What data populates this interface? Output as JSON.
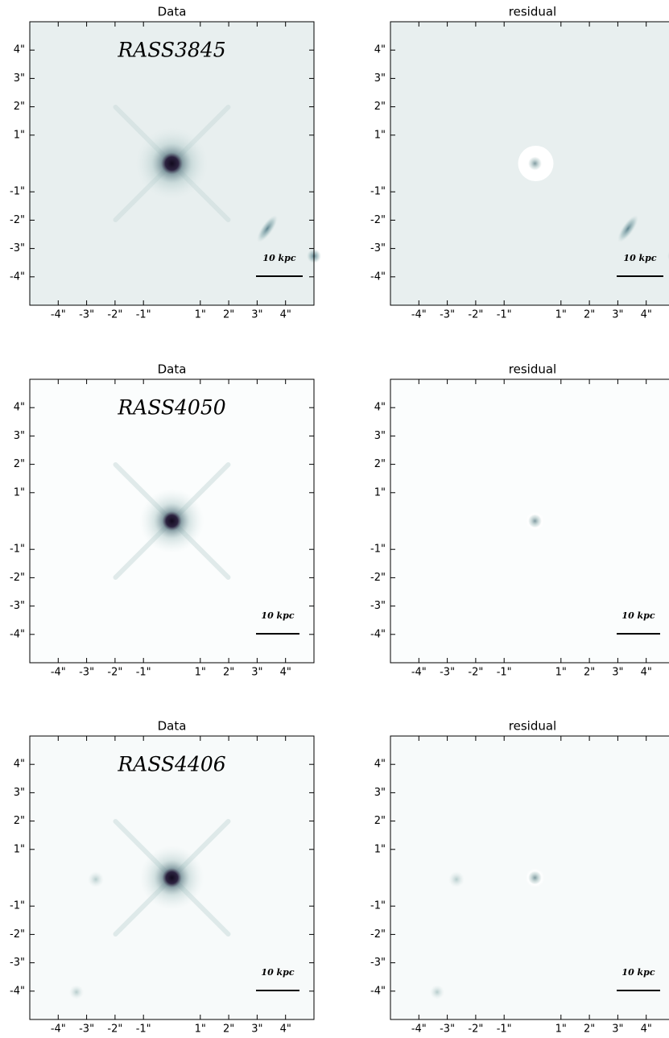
{
  "chart_data": [
    {
      "type": "image",
      "title": "Data",
      "annotation": "RASS3845",
      "scale_label": "10 kpc",
      "xlim": [
        -5,
        5
      ],
      "ylim": [
        -5,
        5
      ],
      "xticks": [
        {
          "value": -4,
          "label": "-4\""
        },
        {
          "value": -3,
          "label": "-3\""
        },
        {
          "value": -2,
          "label": "-2\""
        },
        {
          "value": -1,
          "label": "-1\""
        },
        {
          "value": 1,
          "label": "1\""
        },
        {
          "value": 2,
          "label": "2\""
        },
        {
          "value": 3,
          "label": "3\""
        },
        {
          "value": 4,
          "label": "4\""
        }
      ],
      "yticks": [
        {
          "value": -4,
          "label": "-4\""
        },
        {
          "value": -3,
          "label": "-3\""
        },
        {
          "value": -2,
          "label": "-2\""
        },
        {
          "value": -1,
          "label": "-1\""
        },
        {
          "value": 1,
          "label": "1\""
        },
        {
          "value": 2,
          "label": "2\""
        },
        {
          "value": 3,
          "label": "3\""
        },
        {
          "value": 4,
          "label": "4\""
        }
      ]
    },
    {
      "type": "image",
      "title": "residual",
      "scale_label": "10 kpc",
      "xlim": [
        -5,
        5
      ],
      "ylim": [
        -5,
        5
      ],
      "xticks": [
        {
          "value": -4,
          "label": "-4\""
        },
        {
          "value": -3,
          "label": "-3\""
        },
        {
          "value": -2,
          "label": "-2\""
        },
        {
          "value": -1,
          "label": "-1\""
        },
        {
          "value": 1,
          "label": "1\""
        },
        {
          "value": 2,
          "label": "2\""
        },
        {
          "value": 3,
          "label": "3\""
        },
        {
          "value": 4,
          "label": "4\""
        }
      ],
      "yticks": [
        {
          "value": -4,
          "label": "-4\""
        },
        {
          "value": -3,
          "label": "-3\""
        },
        {
          "value": -2,
          "label": "-2\""
        },
        {
          "value": -1,
          "label": "-1\""
        },
        {
          "value": 1,
          "label": "1\""
        },
        {
          "value": 2,
          "label": "2\""
        },
        {
          "value": 3,
          "label": "3\""
        },
        {
          "value": 4,
          "label": "4\""
        }
      ]
    },
    {
      "type": "image",
      "title": "Data",
      "annotation": "RASS4050",
      "scale_label": "10 kpc",
      "xlim": [
        -5,
        5
      ],
      "ylim": [
        -5,
        5
      ],
      "xticks": [
        {
          "value": -4,
          "label": "-4\""
        },
        {
          "value": -3,
          "label": "-3\""
        },
        {
          "value": -2,
          "label": "-2\""
        },
        {
          "value": -1,
          "label": "-1\""
        },
        {
          "value": 1,
          "label": "1\""
        },
        {
          "value": 2,
          "label": "2\""
        },
        {
          "value": 3,
          "label": "3\""
        },
        {
          "value": 4,
          "label": "4\""
        }
      ],
      "yticks": [
        {
          "value": -4,
          "label": "-4\""
        },
        {
          "value": -3,
          "label": "-3\""
        },
        {
          "value": -2,
          "label": "-2\""
        },
        {
          "value": -1,
          "label": "-1\""
        },
        {
          "value": 1,
          "label": "1\""
        },
        {
          "value": 2,
          "label": "2\""
        },
        {
          "value": 3,
          "label": "3\""
        },
        {
          "value": 4,
          "label": "4\""
        }
      ]
    },
    {
      "type": "image",
      "title": "residual",
      "scale_label": "10 kpc",
      "xlim": [
        -5,
        5
      ],
      "ylim": [
        -5,
        5
      ],
      "xticks": [
        {
          "value": -4,
          "label": "-4\""
        },
        {
          "value": -3,
          "label": "-3\""
        },
        {
          "value": -2,
          "label": "-2\""
        },
        {
          "value": -1,
          "label": "-1\""
        },
        {
          "value": 1,
          "label": "1\""
        },
        {
          "value": 2,
          "label": "2\""
        },
        {
          "value": 3,
          "label": "3\""
        },
        {
          "value": 4,
          "label": "4\""
        }
      ],
      "yticks": [
        {
          "value": -4,
          "label": "-4\""
        },
        {
          "value": -3,
          "label": "-3\""
        },
        {
          "value": -2,
          "label": "-2\""
        },
        {
          "value": -1,
          "label": "-1\""
        },
        {
          "value": 1,
          "label": "1\""
        },
        {
          "value": 2,
          "label": "2\""
        },
        {
          "value": 3,
          "label": "3\""
        },
        {
          "value": 4,
          "label": "4\""
        }
      ]
    },
    {
      "type": "image",
      "title": "Data",
      "annotation": "RASS4406",
      "scale_label": "10 kpc",
      "xlim": [
        -5,
        5
      ],
      "ylim": [
        -5,
        5
      ],
      "xticks": [
        {
          "value": -4,
          "label": "-4\""
        },
        {
          "value": -3,
          "label": "-3\""
        },
        {
          "value": -2,
          "label": "-2\""
        },
        {
          "value": -1,
          "label": "-1\""
        },
        {
          "value": 1,
          "label": "1\""
        },
        {
          "value": 2,
          "label": "2\""
        },
        {
          "value": 3,
          "label": "3\""
        },
        {
          "value": 4,
          "label": "4\""
        }
      ],
      "yticks": [
        {
          "value": -4,
          "label": "-4\""
        },
        {
          "value": -3,
          "label": "-3\""
        },
        {
          "value": -2,
          "label": "-2\""
        },
        {
          "value": -1,
          "label": "-1\""
        },
        {
          "value": 1,
          "label": "1\""
        },
        {
          "value": 2,
          "label": "2\""
        },
        {
          "value": 3,
          "label": "3\""
        },
        {
          "value": 4,
          "label": "4\""
        }
      ]
    },
    {
      "type": "image",
      "title": "residual",
      "scale_label": "10 kpc",
      "xlim": [
        -5,
        5
      ],
      "ylim": [
        -5,
        5
      ],
      "xticks": [
        {
          "value": -4,
          "label": "-4\""
        },
        {
          "value": -3,
          "label": "-3\""
        },
        {
          "value": -2,
          "label": "-2\""
        },
        {
          "value": -1,
          "label": "-1\""
        },
        {
          "value": 1,
          "label": "1\""
        },
        {
          "value": 2,
          "label": "2\""
        },
        {
          "value": 3,
          "label": "3\""
        },
        {
          "value": 4,
          "label": "4\""
        }
      ],
      "yticks": [
        {
          "value": -4,
          "label": "-4\""
        },
        {
          "value": -3,
          "label": "-3\""
        },
        {
          "value": -2,
          "label": "-2\""
        },
        {
          "value": -1,
          "label": "-1\""
        },
        {
          "value": 1,
          "label": "1\""
        },
        {
          "value": 2,
          "label": "2\""
        },
        {
          "value": 3,
          "label": "3\""
        },
        {
          "value": 4,
          "label": "4\""
        }
      ]
    }
  ]
}
